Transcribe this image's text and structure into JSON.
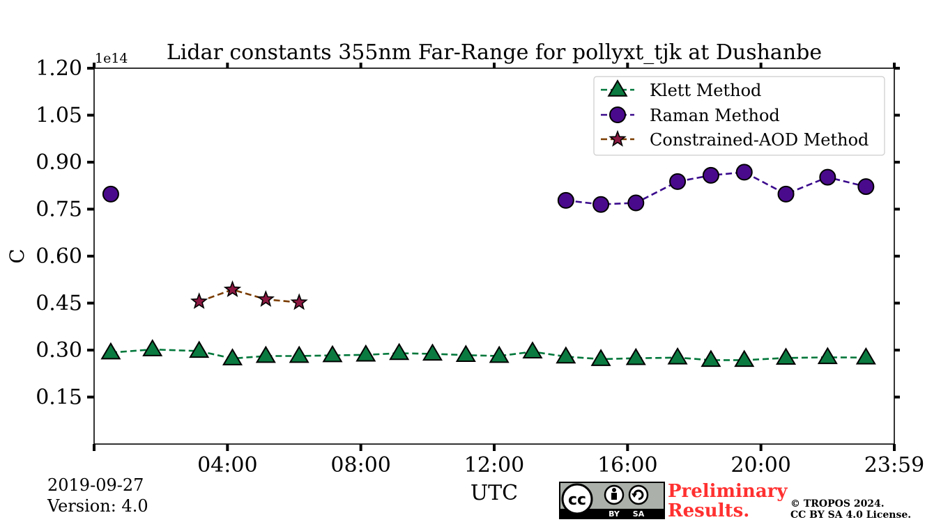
{
  "chart_data": {
    "type": "line",
    "title": "Lidar constants 355nm Far-Range for pollyxt_tjk at Dushanbe",
    "xlabel": "UTC",
    "ylabel": "C",
    "y_offset_label": "1e14",
    "xlim": [
      0,
      24
    ],
    "ylim": [
      0,
      1.2
    ],
    "x_ticks": [
      4,
      8,
      12,
      16,
      20,
      24
    ],
    "x_tick_labels": [
      "04:00",
      "08:00",
      "12:00",
      "16:00",
      "20:00",
      "23:59"
    ],
    "y_ticks": [
      0.15,
      0.3,
      0.45,
      0.6,
      0.75,
      0.9,
      1.05,
      1.2
    ],
    "y_tick_labels": [
      "0.15",
      "0.30",
      "0.45",
      "0.60",
      "0.75",
      "0.90",
      "1.05",
      "1.20"
    ],
    "legend_position": "top-right",
    "series": [
      {
        "name": "Klett Method",
        "marker": "triangle",
        "line_color": "#00773a",
        "marker_color": "#0b7a40",
        "x": [
          0.5,
          1.75,
          3.15,
          4.15,
          5.15,
          6.15,
          7.15,
          8.15,
          9.15,
          10.15,
          11.15,
          12.15,
          13.15,
          14.15,
          15.2,
          16.25,
          17.5,
          18.5,
          19.5,
          20.75,
          22.0,
          23.15
        ],
        "values": [
          0.292,
          0.302,
          0.297,
          0.273,
          0.281,
          0.281,
          0.283,
          0.285,
          0.29,
          0.288,
          0.284,
          0.281,
          0.295,
          0.279,
          0.271,
          0.274,
          0.276,
          0.268,
          0.268,
          0.275,
          0.277,
          0.276
        ]
      },
      {
        "name": "Raman Method",
        "marker": "circle",
        "line_color": "#3a0a8c",
        "marker_color": "#4a0a8c",
        "x": [
          0.5,
          14.15,
          15.2,
          16.25,
          17.5,
          18.5,
          19.5,
          20.75,
          22.0,
          23.15
        ],
        "values": [
          0.798,
          0.778,
          0.765,
          0.77,
          0.838,
          0.858,
          0.868,
          0.798,
          0.852,
          0.822
        ]
      },
      {
        "name": "Constrained-AOD Method",
        "marker": "star",
        "line_color": "#7a3c00",
        "marker_color": "#8a1840",
        "x": [
          3.15,
          4.15,
          5.15,
          6.15
        ],
        "values": [
          0.455,
          0.493,
          0.462,
          0.452
        ]
      }
    ]
  },
  "footer": {
    "date": "2019-09-27",
    "version": "Version: 4.0",
    "preliminary_line1": "Preliminary",
    "preliminary_line2": "Results.",
    "copyright_line1": "© TROPOS 2024.",
    "copyright_line2": "CC BY SA 4.0 License.",
    "license_badge_by": "BY",
    "license_badge_sa": "SA",
    "license_badge_cc": "cc"
  }
}
